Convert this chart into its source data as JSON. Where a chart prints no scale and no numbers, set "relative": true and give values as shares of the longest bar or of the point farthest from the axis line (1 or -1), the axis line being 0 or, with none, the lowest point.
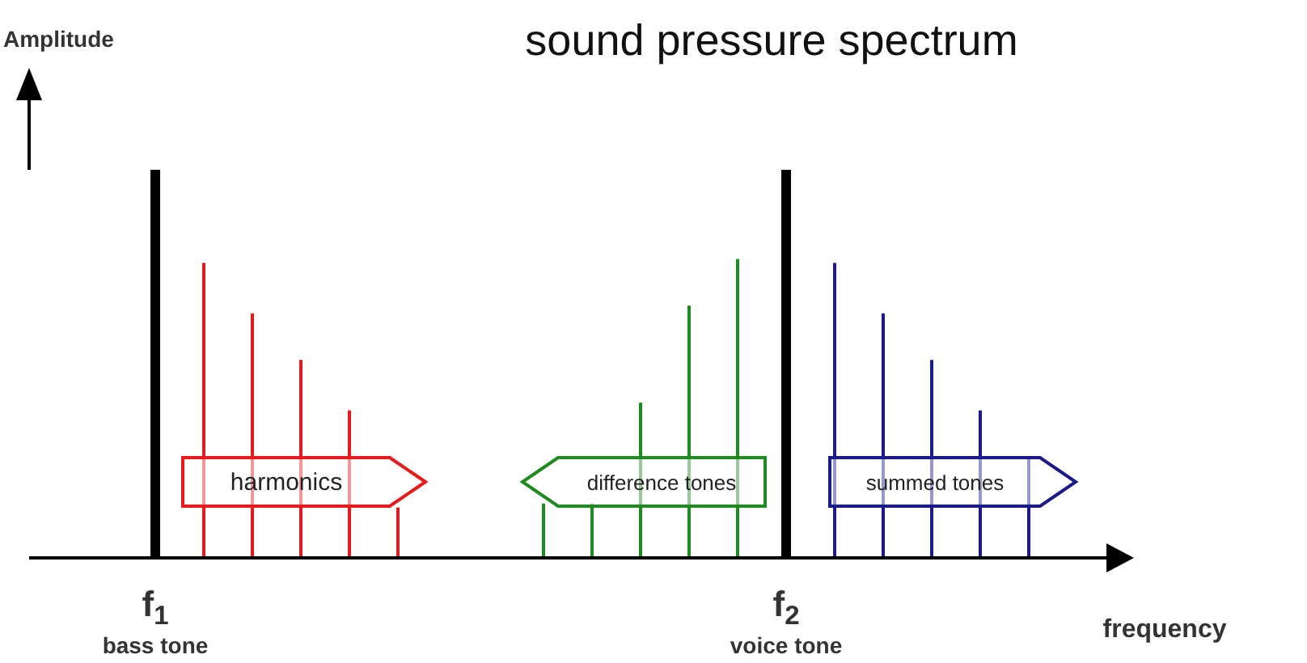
{
  "chart_data": {
    "type": "bar",
    "title": "sound pressure spectrum",
    "xlabel": "frequency",
    "relative": true,
    "categories": [
      "f$_{1}$",
      null,
      null,
      null,
      null,
      null,
      null,
      null,
      null,
      null,
      null,
      null,
      null,
      "f$_{2}$",
      null,
      null,
      null,
      null,
      null
    ],
    "series": [
      {
        "color": "#000000",
        "values": [
          1,
          null,
          null,
          null,
          null,
          null,
          null,
          null,
          null,
          null,
          null,
          null,
          null,
          1,
          null,
          null,
          null,
          null,
          null
        ]
      },
      {
        "color": "#e8191a",
        "colors": [
          "#e8191a",
          "#e8191a",
          "#e8191a",
          "#e8191a",
          "#e8191a",
          "#e8191a",
          null,
          null,
          "#1f8a1f",
          "#1f8a1f",
          "#1f8a1f",
          "#1f8a1f",
          "#1f8a1f",
          null,
          "#1a1a8a",
          "#1a1a8a",
          "#1a1a8a",
          "#1a1a8a",
          "#1a1a8a"
        ],
        "values": [
          null,
          0.76,
          0.63,
          0.51,
          0.38,
          0.13,
          null,
          null,
          0.14,
          0.14,
          0.4,
          0.65,
          0.77,
          null,
          0.76,
          0.63,
          0.51,
          0.38,
          0.26
        ]
      }
    ],
    "annotations": [
      "harmonics",
      "difference tones",
      "summed tones",
      "bass tone",
      "voice tone",
      "Amplitude"
    ],
    "grid": false,
    "legend": false
  }
}
